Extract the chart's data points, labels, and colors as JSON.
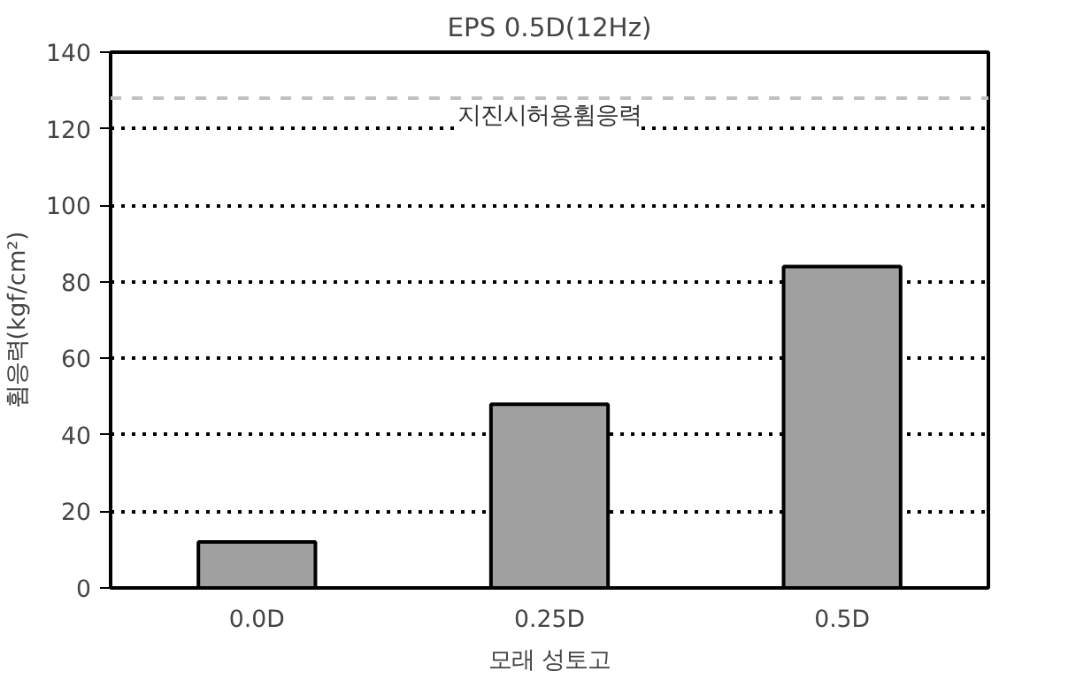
{
  "chart_data": {
    "type": "bar",
    "title": "EPS 0.5D(12Hz)",
    "xlabel": "모래 성토고",
    "ylabel": "휨응력(kgf/cm²)",
    "categories": [
      "0.0D",
      "0.25D",
      "0.5D"
    ],
    "series": [
      {
        "color": "#a0a0a0",
        "values": [
          12,
          48,
          84
        ]
      }
    ],
    "ylim": [
      0,
      140
    ],
    "yticks": [
      0,
      20,
      40,
      60,
      80,
      100,
      120,
      140
    ],
    "grid": "y",
    "ref_lines": [
      {
        "axis": "y",
        "value": 128,
        "label": "지진시허용휨응력",
        "color": "#c0c0c0",
        "line_style": "dashed"
      }
    ]
  }
}
